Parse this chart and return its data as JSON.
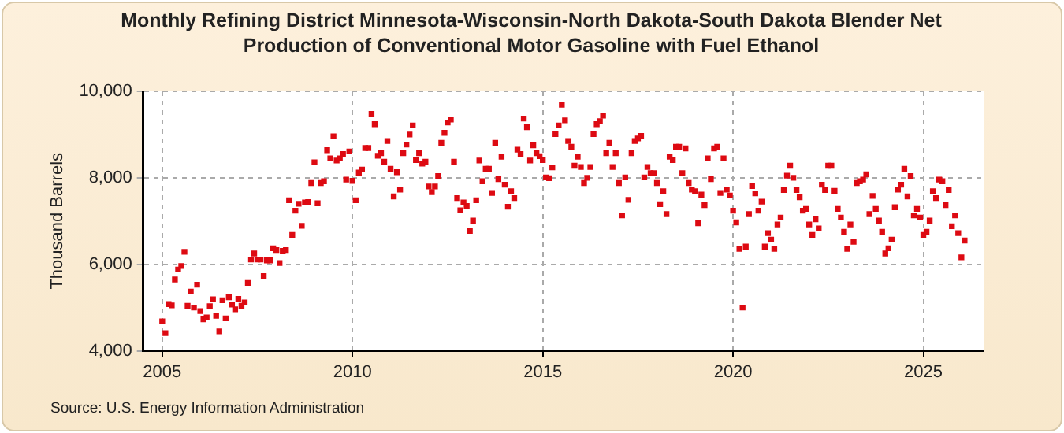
{
  "chart_data": {
    "type": "scatter",
    "title": "Monthly Refining District Minnesota-Wisconsin-North Dakota-South Dakota Blender Net Production of Conventional Motor Gasoline with Fuel Ethanol",
    "ylabel": "Thousand Barrels",
    "annotations": [
      "Source: U.S. Energy Information Administration"
    ],
    "x": [
      "2005-01",
      "2005-02",
      "2005-03",
      "2005-04",
      "2005-05",
      "2005-06",
      "2005-07",
      "2005-08",
      "2005-09",
      "2005-10",
      "2005-11",
      "2005-12",
      "2006-01",
      "2006-02",
      "2006-03",
      "2006-04",
      "2006-05",
      "2006-06",
      "2006-07",
      "2006-08",
      "2006-09",
      "2006-10",
      "2006-11",
      "2006-12",
      "2007-01",
      "2007-02",
      "2007-03",
      "2007-04",
      "2007-05",
      "2007-06",
      "2007-07",
      "2007-08",
      "2007-09",
      "2007-10",
      "2007-11",
      "2007-12",
      "2008-01",
      "2008-02",
      "2008-03",
      "2008-04",
      "2008-05",
      "2008-06",
      "2008-07",
      "2008-08",
      "2008-09",
      "2008-10",
      "2008-11",
      "2008-12",
      "2009-01",
      "2009-02",
      "2009-03",
      "2009-04",
      "2009-05",
      "2009-06",
      "2009-07",
      "2009-08",
      "2009-09",
      "2009-10",
      "2009-11",
      "2009-12",
      "2010-01",
      "2010-02",
      "2010-03",
      "2010-04",
      "2010-05",
      "2010-06",
      "2010-07",
      "2010-08",
      "2010-09",
      "2010-10",
      "2010-11",
      "2010-12",
      "2011-01",
      "2011-02",
      "2011-03",
      "2011-04",
      "2011-05",
      "2011-06",
      "2011-07",
      "2011-08",
      "2011-09",
      "2011-10",
      "2011-11",
      "2011-12",
      "2012-01",
      "2012-02",
      "2012-03",
      "2012-04",
      "2012-05",
      "2012-06",
      "2012-07",
      "2012-08",
      "2012-09",
      "2012-10",
      "2012-11",
      "2012-12",
      "2013-01",
      "2013-02",
      "2013-03",
      "2013-04",
      "2013-05",
      "2013-06",
      "2013-07",
      "2013-08",
      "2013-09",
      "2013-10",
      "2013-11",
      "2013-12",
      "2014-01",
      "2014-02",
      "2014-03",
      "2014-04",
      "2014-05",
      "2014-06",
      "2014-07",
      "2014-08",
      "2014-09",
      "2014-10",
      "2014-11",
      "2014-12",
      "2015-01",
      "2015-02",
      "2015-03",
      "2015-04",
      "2015-05",
      "2015-06",
      "2015-07",
      "2015-08",
      "2015-09",
      "2015-10",
      "2015-11",
      "2015-12",
      "2016-01",
      "2016-02",
      "2016-03",
      "2016-04",
      "2016-05",
      "2016-06",
      "2016-07",
      "2016-08",
      "2016-09",
      "2016-10",
      "2016-11",
      "2016-12",
      "2017-01",
      "2017-02",
      "2017-03",
      "2017-04",
      "2017-05",
      "2017-06",
      "2017-07",
      "2017-08",
      "2017-09",
      "2017-10",
      "2017-11",
      "2017-12",
      "2018-01",
      "2018-02",
      "2018-03",
      "2018-04",
      "2018-05",
      "2018-06",
      "2018-07",
      "2018-08",
      "2018-09",
      "2018-10",
      "2018-11",
      "2018-12",
      "2019-01",
      "2019-02",
      "2019-03",
      "2019-04",
      "2019-05",
      "2019-06",
      "2019-07",
      "2019-08",
      "2019-09",
      "2019-10",
      "2019-11",
      "2019-12",
      "2020-01",
      "2020-02",
      "2020-03",
      "2020-04",
      "2020-05",
      "2020-06",
      "2020-07",
      "2020-08",
      "2020-09",
      "2020-10",
      "2020-11",
      "2020-12",
      "2021-01",
      "2021-02",
      "2021-03",
      "2021-04",
      "2021-05",
      "2021-06",
      "2021-07",
      "2021-08",
      "2021-09",
      "2021-10",
      "2021-11",
      "2021-12",
      "2022-01",
      "2022-02",
      "2022-03",
      "2022-04",
      "2022-05",
      "2022-06",
      "2022-07",
      "2022-08",
      "2022-09",
      "2022-10",
      "2022-11",
      "2022-12",
      "2023-01",
      "2023-02",
      "2023-03",
      "2023-04",
      "2023-05",
      "2023-06",
      "2023-07",
      "2023-08",
      "2023-09",
      "2023-10",
      "2023-11",
      "2023-12",
      "2024-01",
      "2024-02",
      "2024-03",
      "2024-04",
      "2024-05",
      "2024-06",
      "2024-07",
      "2024-08",
      "2024-09",
      "2024-10",
      "2024-11",
      "2024-12",
      "2025-01",
      "2025-02",
      "2025-03",
      "2025-04",
      "2025-05",
      "2025-06",
      "2025-07",
      "2025-08",
      "2025-09",
      "2025-10",
      "2025-11",
      "2025-12",
      "2026-01",
      "2026-02"
    ],
    "series": [
      {
        "color": "#dd0a12",
        "values": [
          4680,
          4410,
          5080,
          5050,
          5650,
          5880,
          5960,
          6290,
          5040,
          5370,
          5000,
          5530,
          4920,
          4730,
          4770,
          5030,
          5190,
          4810,
          4450,
          5170,
          4750,
          5240,
          5070,
          4960,
          5200,
          5040,
          5120,
          5570,
          6110,
          6250,
          6110,
          6110,
          5730,
          6090,
          6090,
          6370,
          6330,
          6030,
          6310,
          6330,
          7480,
          6680,
          7240,
          7400,
          6890,
          7430,
          7440,
          7880,
          8360,
          7410,
          7880,
          7920,
          8640,
          8450,
          8960,
          8400,
          8450,
          8550,
          7960,
          8610,
          7930,
          7480,
          8120,
          8190,
          8690,
          8690,
          9480,
          9240,
          8510,
          8570,
          8370,
          8850,
          8210,
          7570,
          8130,
          7730,
          8570,
          8770,
          9000,
          9210,
          8410,
          8570,
          8330,
          8370,
          7800,
          7670,
          7800,
          8040,
          8810,
          9040,
          9280,
          9350,
          8370,
          7530,
          7250,
          7430,
          7350,
          6770,
          7010,
          7480,
          8400,
          7920,
          8210,
          8210,
          7650,
          8810,
          7970,
          8490,
          7840,
          7330,
          7690,
          7530,
          8650,
          8550,
          9370,
          9170,
          8400,
          8750,
          8570,
          8500,
          8410,
          8010,
          7990,
          8240,
          9010,
          9210,
          9690,
          9330,
          8850,
          8720,
          8280,
          8490,
          8250,
          7880,
          8000,
          8250,
          9010,
          9240,
          9310,
          9440,
          8570,
          8810,
          8250,
          8570,
          7880,
          7130,
          8010,
          7490,
          8570,
          8850,
          8910,
          8970,
          8010,
          8250,
          8110,
          8110,
          7880,
          7390,
          7690,
          7160,
          8490,
          8410,
          8720,
          8720,
          8110,
          8680,
          7880,
          7730,
          7690,
          6950,
          7610,
          7370,
          8450,
          7970,
          8680,
          8720,
          7650,
          8450,
          7730,
          7590,
          7240,
          6970,
          6360,
          5000,
          6410,
          7160,
          7810,
          7640,
          7240,
          7450,
          6410,
          6720,
          6570,
          6360,
          6920,
          7080,
          7720,
          8050,
          8280,
          8000,
          7720,
          7550,
          7240,
          7280,
          6920,
          6680,
          7040,
          6830,
          7840,
          7720,
          8280,
          8280,
          7700,
          7280,
          7080,
          6750,
          6360,
          6920,
          6520,
          7880,
          7920,
          7960,
          8080,
          7160,
          7580,
          7280,
          7010,
          6750,
          6250,
          6370,
          6570,
          7320,
          7730,
          7840,
          8210,
          7570,
          8040,
          7130,
          7280,
          7080,
          6680,
          6750,
          7010,
          7690,
          7530,
          7960,
          7920,
          7370,
          7720,
          6880,
          7130,
          6720,
          6160,
          6550
        ]
      }
    ],
    "xlim": [
      "2004-07",
      "2026-08"
    ],
    "xticks": [
      "2005",
      "2010",
      "2015",
      "2020",
      "2025"
    ],
    "ylim": [
      4000,
      10000
    ],
    "yticks": [
      {
        "value": 4000,
        "label": "4,000"
      },
      {
        "value": 6000,
        "label": "6,000"
      },
      {
        "value": 8000,
        "label": "8,000"
      },
      {
        "value": 10000,
        "label": "10,000"
      }
    ],
    "grid": true,
    "legend": false,
    "marker": "square"
  }
}
